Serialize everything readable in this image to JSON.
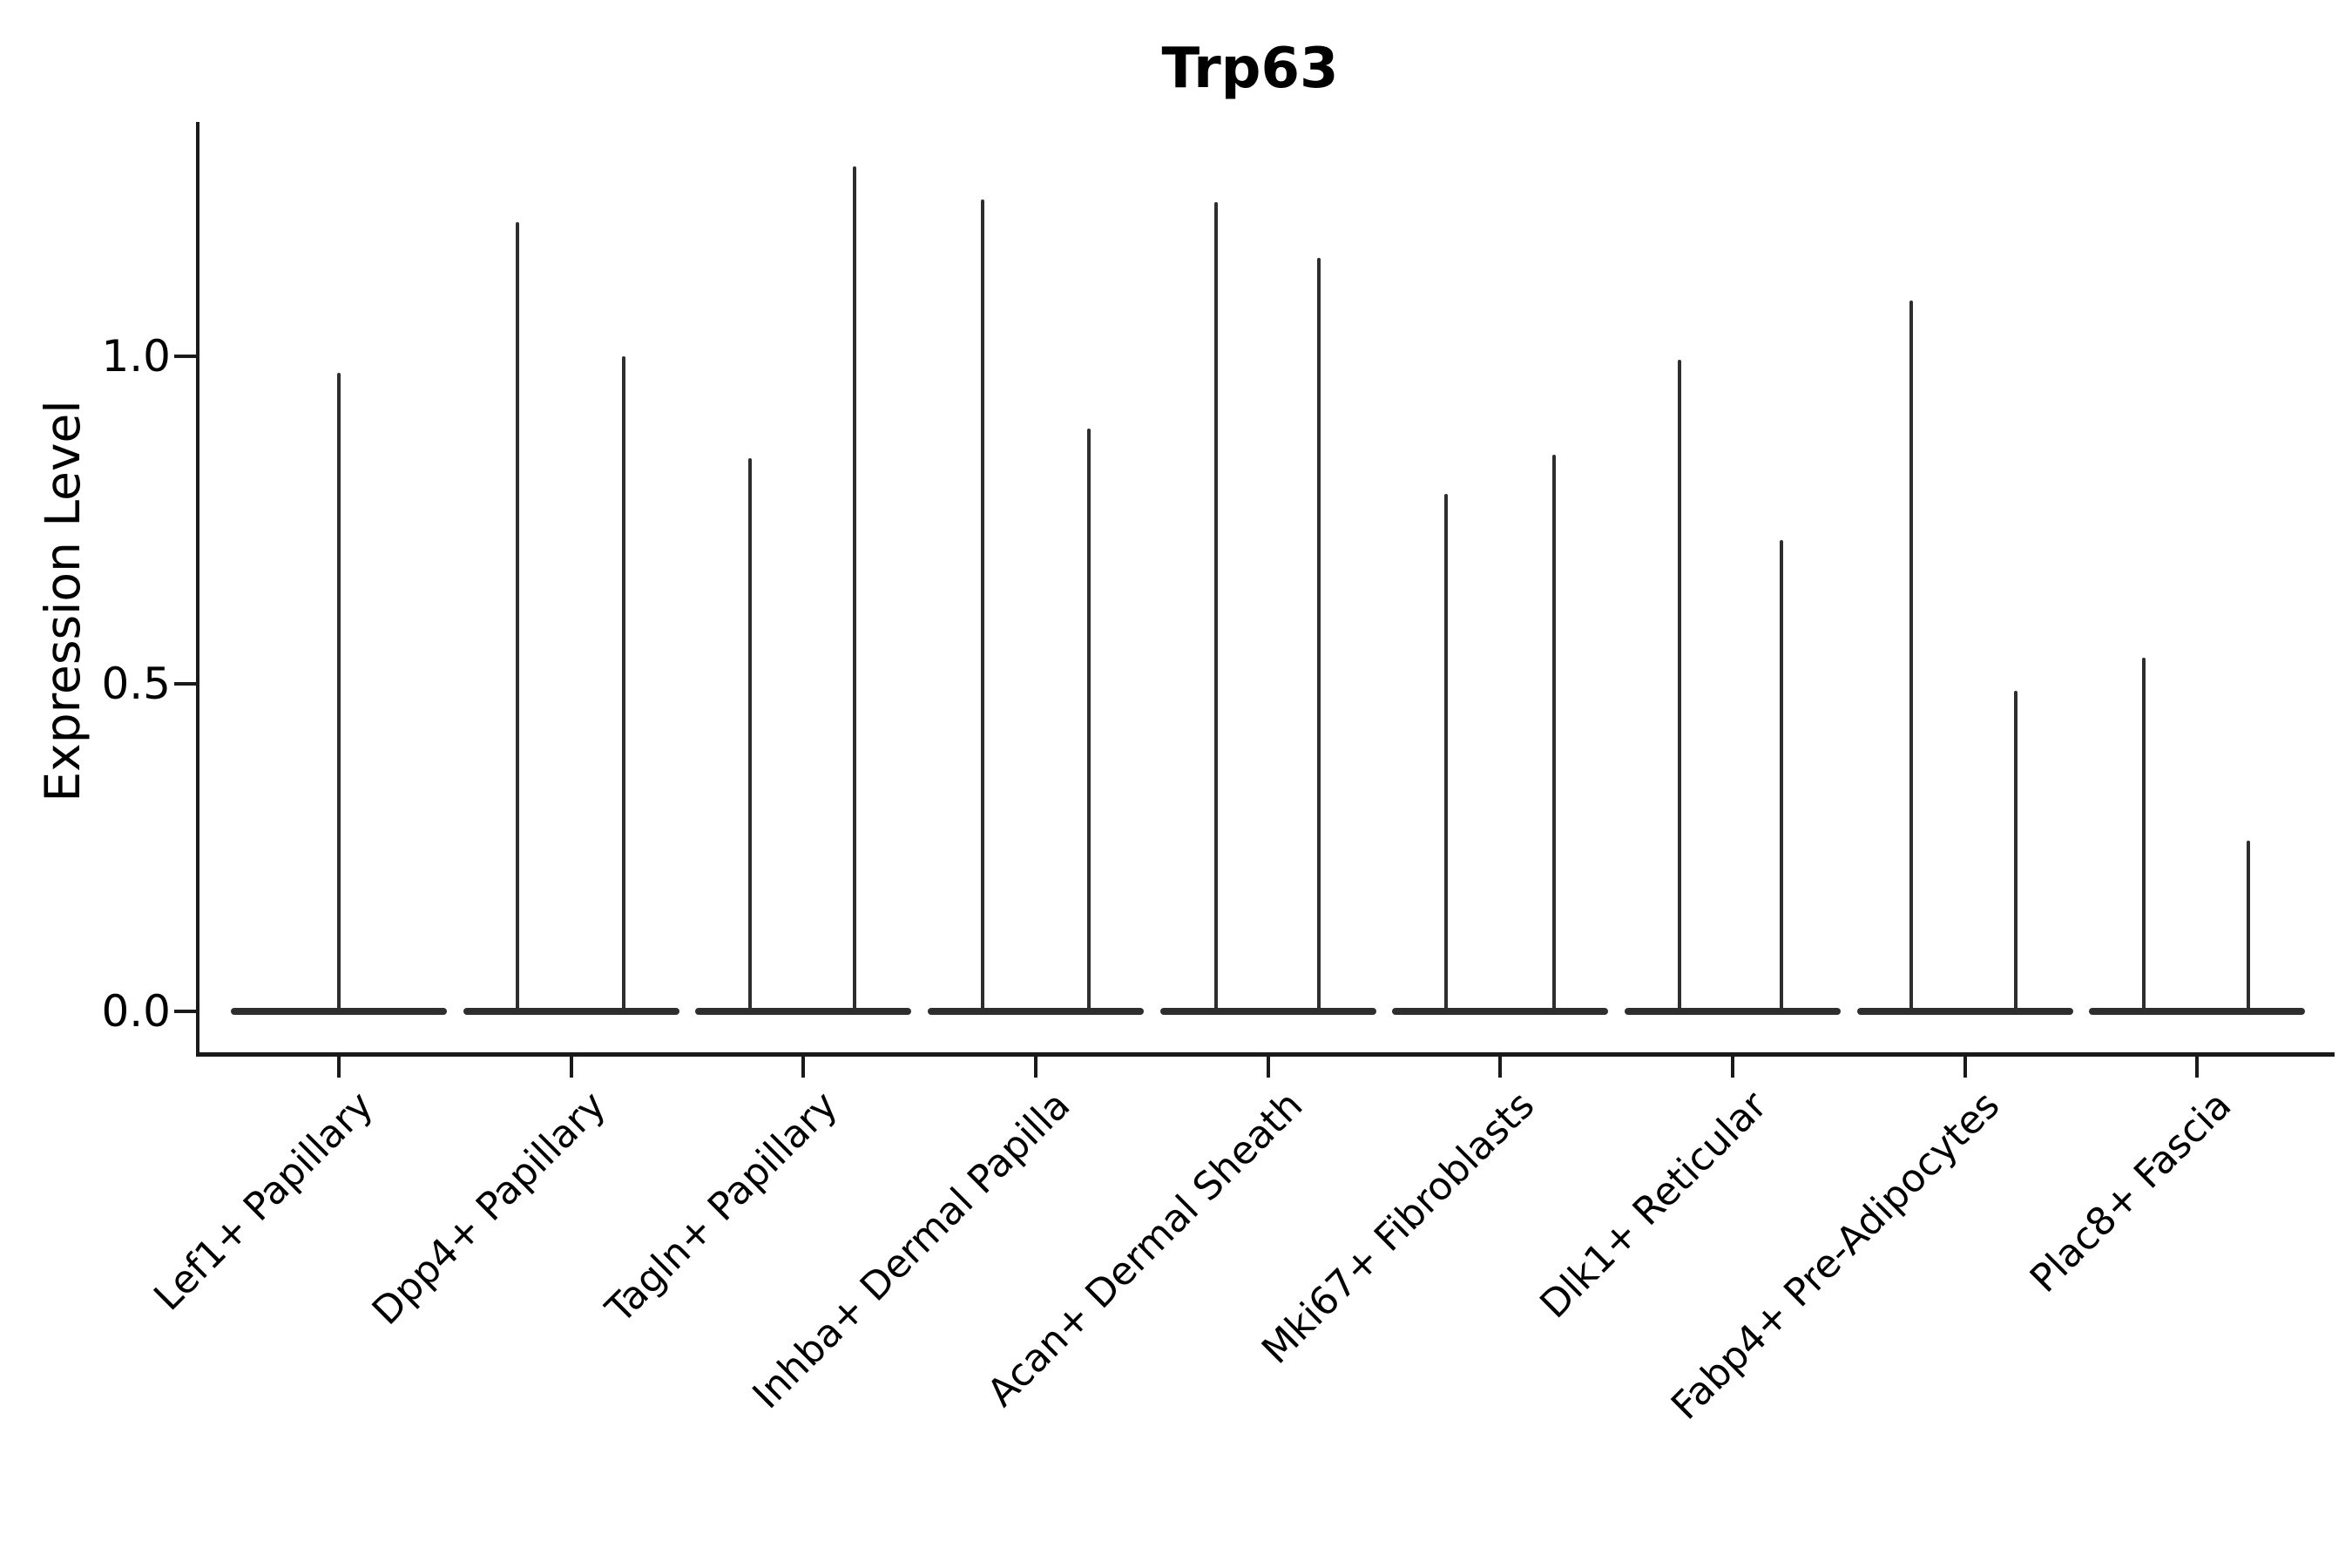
{
  "title": "Trp63",
  "y_axis": {
    "label": "Expression Level",
    "ticks": [
      {
        "label": "1.0",
        "value": 1.0
      },
      {
        "label": "0.5",
        "value": 0.5
      },
      {
        "label": "0.0",
        "value": 0.0
      }
    ]
  },
  "chart_data": {
    "type": "violin",
    "title": "Trp63",
    "xlabel": "",
    "ylabel": "Expression Level",
    "ylim": [
      0,
      1.36
    ],
    "y_ticks": [
      0.0,
      0.5,
      1.0
    ],
    "grid": false,
    "legend_position": "none",
    "outline_color": "#2e2e2e",
    "description": "Each category shows violin(s): wide flat base at expression 0 with thin density spike(s) rising to the max expression value.",
    "categories": [
      {
        "label": "Lef1+ Papillary",
        "violins": [
          {
            "dx": 0,
            "max": 0.975
          }
        ]
      },
      {
        "label": "Dpp4+ Papillary",
        "violins": [
          {
            "dx": -62,
            "max": 1.205
          },
          {
            "dx": 60,
            "max": 1.0
          }
        ]
      },
      {
        "label": "Tagln+ Papillary",
        "violins": [
          {
            "dx": -61,
            "max": 0.845
          },
          {
            "dx": 59,
            "max": 1.29
          }
        ]
      },
      {
        "label": "Inhba+ Dermal Papilla",
        "violins": [
          {
            "dx": -61,
            "max": 1.24
          },
          {
            "dx": 61,
            "max": 0.89
          }
        ]
      },
      {
        "label": "Acan+ Dermal Sheath",
        "violins": [
          {
            "dx": -60,
            "max": 1.235
          },
          {
            "dx": 58,
            "max": 1.15
          }
        ]
      },
      {
        "label": "Mki67+ Fibroblasts",
        "violins": [
          {
            "dx": -62,
            "max": 0.79
          },
          {
            "dx": 62,
            "max": 0.85
          }
        ]
      },
      {
        "label": "Dlk1+ Reticular",
        "violins": [
          {
            "dx": -61,
            "max": 0.995
          },
          {
            "dx": 56,
            "max": 0.72
          }
        ]
      },
      {
        "label": "Fabp4+ Pre-Adipocytes",
        "violins": [
          {
            "dx": -62,
            "max": 1.085
          },
          {
            "dx": 58,
            "max": 0.49
          }
        ]
      },
      {
        "label": "Plac8+ Fascia",
        "violins": [
          {
            "dx": -61,
            "max": 0.54
          },
          {
            "dx": 59,
            "max": 0.26
          }
        ]
      }
    ]
  }
}
